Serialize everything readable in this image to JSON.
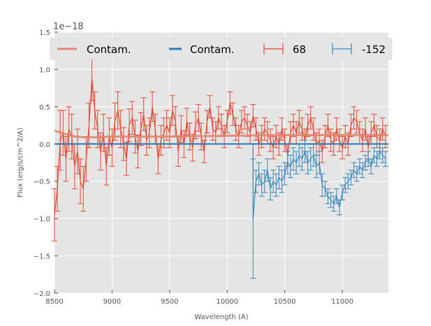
{
  "chart_data": {
    "type": "line",
    "title": "",
    "xlabel": "Wavelength (A)",
    "ylabel": "Flux (erg/s/cm^2/A)",
    "offset_text": "1e−18",
    "xlim": [
      8500,
      11400
    ],
    "ylim": [
      -2.0,
      1.5
    ],
    "xticks": [
      8500,
      9000,
      9500,
      10000,
      10500,
      11000
    ],
    "xtick_labels": [
      "8500",
      "9000",
      "9500",
      "10000",
      "10500",
      "11000"
    ],
    "yticks": [
      -2.0,
      -1.5,
      -1.0,
      -0.5,
      0.0,
      0.5,
      1.0,
      1.5
    ],
    "ytick_labels": [
      "−2.0",
      "−1.5",
      "−1.0",
      "−0.5",
      "0.0",
      "0.5",
      "1.0",
      "1.5"
    ],
    "grid": true,
    "legend_position": "top",
    "series": [
      {
        "name": "Contam.",
        "kind": "line",
        "color": "#E48170",
        "x": [
          8500,
          8560,
          8620,
          8680,
          8750,
          8850,
          9000,
          9500,
          10000,
          10500,
          11000,
          11400
        ],
        "y": [
          0.18,
          0.15,
          0.12,
          0.1,
          0.09,
          0.09,
          0.1,
          0.1,
          0.11,
          0.12,
          0.12,
          0.12
        ]
      },
      {
        "name": "Contam.",
        "kind": "line",
        "color": "#2A7BB5",
        "x": [
          8500,
          9000,
          9500,
          10000,
          10200,
          10500,
          11000,
          11400
        ],
        "y": [
          0.0,
          0.0,
          0.0,
          0.0,
          0.0,
          0.0,
          0.0,
          0.0
        ]
      },
      {
        "name": "68",
        "kind": "errorbar",
        "color": "#E24A33",
        "x": [
          8500,
          8525,
          8550,
          8575,
          8600,
          8625,
          8650,
          8675,
          8700,
          8725,
          8750,
          8775,
          8800,
          8825,
          8850,
          8875,
          8900,
          8925,
          8950,
          8975,
          9000,
          9025,
          9050,
          9075,
          9100,
          9125,
          9150,
          9175,
          9200,
          9225,
          9250,
          9275,
          9300,
          9325,
          9350,
          9375,
          9400,
          9425,
          9450,
          9475,
          9500,
          9525,
          9550,
          9575,
          9600,
          9625,
          9650,
          9675,
          9700,
          9725,
          9750,
          9775,
          9800,
          9825,
          9850,
          9875,
          9900,
          9925,
          9950,
          9975,
          10000,
          10025,
          10050,
          10075,
          10100,
          10125,
          10150,
          10175,
          10200,
          10225,
          10250,
          10275,
          10300,
          10325,
          10350,
          10375,
          10400,
          10425,
          10450,
          10475,
          10500,
          10525,
          10550,
          10575,
          10600,
          10625,
          10650,
          10675,
          10700,
          10725,
          10750,
          10775,
          10800,
          10825,
          10850,
          10875,
          10900,
          10925,
          10950,
          10975,
          11000,
          11025,
          11050,
          11075,
          11100,
          11125,
          11150,
          11175,
          11200,
          11225,
          11250,
          11275,
          11300,
          11325,
          11350,
          11375
        ],
        "y": [
          -0.95,
          -0.6,
          0.05,
          0.15,
          -0.2,
          0.2,
          0.1,
          -0.3,
          -0.1,
          -0.5,
          -0.6,
          -0.2,
          0.25,
          0.88,
          0.45,
          0.2,
          -0.1,
          0.15,
          -0.3,
          0.1,
          -0.05,
          0.3,
          0.45,
          0.2,
          0.0,
          -0.2,
          0.25,
          0.35,
          0.1,
          -0.1,
          0.2,
          0.4,
          0.05,
          0.15,
          0.5,
          0.2,
          -0.2,
          0.05,
          0.15,
          0.25,
          0.15,
          0.45,
          0.3,
          -0.1,
          0.2,
          0.0,
          0.3,
          0.1,
          -0.05,
          0.25,
          0.35,
          0.1,
          -0.1,
          0.3,
          0.5,
          0.2,
          0.15,
          0.35,
          0.25,
          0.1,
          0.3,
          0.55,
          0.4,
          0.2,
          0.1,
          0.3,
          0.35,
          0.25,
          0.15,
          0.38,
          0.2,
          0.0,
          0.1,
          0.2,
          0.15,
          0.05,
          -0.05,
          0.1,
          0.0,
          0.2,
          0.05,
          -0.15,
          0.15,
          0.25,
          0.15,
          0.3,
          0.2,
          0.05,
          0.25,
          0.35,
          0.2,
          0.0,
          0.05,
          -0.1,
          0.1,
          0.25,
          0.05,
          0.0,
          0.2,
          0.05,
          -0.05,
          0.1,
          0.0,
          0.25,
          0.35,
          0.3,
          0.15,
          0.05,
          0.2,
          -0.05,
          0.15,
          0.25,
          0.1,
          0.05,
          0.2,
          0.1
        ],
        "yerr": [
          0.35,
          0.3,
          0.4,
          0.3,
          0.3,
          0.3,
          0.3,
          0.3,
          0.3,
          0.3,
          0.3,
          0.3,
          0.3,
          0.3,
          0.25,
          0.25,
          0.25,
          0.25,
          0.25,
          0.25,
          0.25,
          0.25,
          0.25,
          0.25,
          0.22,
          0.22,
          0.22,
          0.22,
          0.22,
          0.22,
          0.22,
          0.22,
          0.2,
          0.2,
          0.2,
          0.2,
          0.2,
          0.2,
          0.2,
          0.2,
          0.2,
          0.2,
          0.2,
          0.2,
          0.18,
          0.18,
          0.18,
          0.18,
          0.18,
          0.18,
          0.18,
          0.18,
          0.15,
          0.15,
          0.15,
          0.15,
          0.15,
          0.15,
          0.15,
          0.15,
          0.15,
          0.15,
          0.15,
          0.15,
          0.15,
          0.15,
          0.15,
          0.15,
          0.15,
          0.15,
          0.15,
          0.15,
          0.15,
          0.15,
          0.15,
          0.15,
          0.15,
          0.15,
          0.15,
          0.15,
          0.15,
          0.15,
          0.15,
          0.15,
          0.15,
          0.15,
          0.15,
          0.15,
          0.15,
          0.15,
          0.15,
          0.15,
          0.15,
          0.15,
          0.15,
          0.15,
          0.15,
          0.15,
          0.15,
          0.15,
          0.15,
          0.15,
          0.15,
          0.15,
          0.15,
          0.15,
          0.15,
          0.15,
          0.15,
          0.15,
          0.15,
          0.15,
          0.15,
          0.15,
          0.15,
          0.15
        ]
      },
      {
        "name": "-152",
        "kind": "errorbar",
        "color": "#348ABD",
        "x": [
          10225,
          10250,
          10275,
          10300,
          10325,
          10350,
          10375,
          10400,
          10425,
          10450,
          10475,
          10500,
          10525,
          10550,
          10575,
          10600,
          10625,
          10650,
          10675,
          10700,
          10725,
          10750,
          10775,
          10800,
          10825,
          10850,
          10875,
          10900,
          10925,
          10950,
          10975,
          11000,
          11025,
          11050,
          11075,
          11100,
          11125,
          11150,
          11175,
          11200,
          11225,
          11250,
          11275,
          11300,
          11325,
          11350,
          11375
        ],
        "y": [
          -1.0,
          -0.5,
          -0.4,
          -0.55,
          -0.5,
          -0.35,
          -0.6,
          -0.5,
          -0.55,
          -0.45,
          -0.5,
          -0.4,
          -0.25,
          -0.3,
          -0.2,
          -0.25,
          -0.15,
          -0.2,
          -0.1,
          -0.25,
          -0.2,
          -0.15,
          -0.3,
          -0.25,
          -0.55,
          -0.6,
          -0.7,
          -0.75,
          -0.8,
          -0.7,
          -0.85,
          -0.65,
          -0.55,
          -0.5,
          -0.45,
          -0.35,
          -0.4,
          -0.3,
          -0.35,
          -0.25,
          -0.2,
          -0.3,
          -0.15,
          -0.2,
          -0.1,
          -0.15,
          -0.2
        ],
        "yerr": [
          0.8,
          0.15,
          0.15,
          0.15,
          0.15,
          0.15,
          0.15,
          0.15,
          0.15,
          0.15,
          0.15,
          0.15,
          0.15,
          0.15,
          0.15,
          0.15,
          0.15,
          0.15,
          0.15,
          0.15,
          0.15,
          0.15,
          0.15,
          0.15,
          0.15,
          0.1,
          0.1,
          0.1,
          0.1,
          0.1,
          0.1,
          0.1,
          0.1,
          0.1,
          0.1,
          0.1,
          0.1,
          0.1,
          0.1,
          0.1,
          0.1,
          0.1,
          0.1,
          0.1,
          0.1,
          0.1,
          0.1
        ]
      }
    ]
  }
}
